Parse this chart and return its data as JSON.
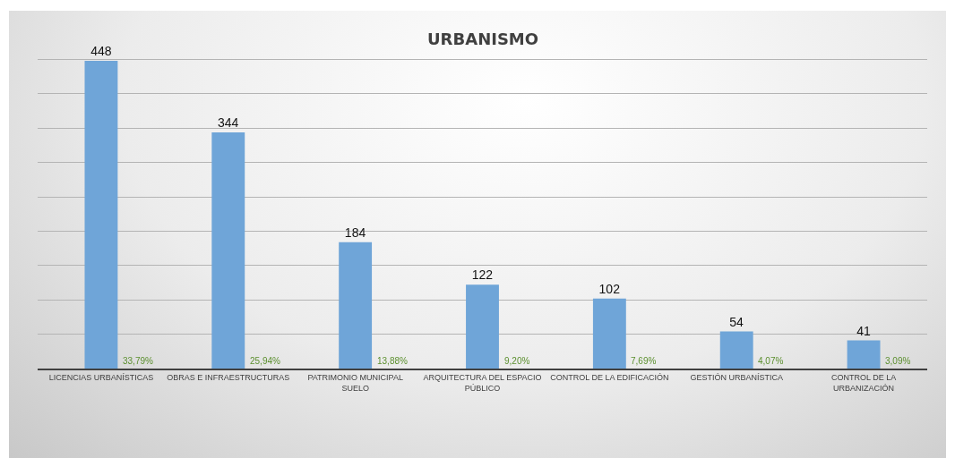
{
  "chart_data": {
    "type": "bar",
    "title": "URBANISMO",
    "categories": [
      "LICENCIAS URBANÍSTICAS",
      "OBRAS E INFRAESTRUCTURAS",
      "PATRIMONIO MUNICIPAL SUELO",
      "ARQUITECTURA DEL ESPACIO PÚBLICO",
      "CONTROL DE LA EDIFICACIÓN",
      "GESTIÓN URBANÍSTICA",
      "CONTROL DE LA URBANIZACIÓN"
    ],
    "values": [
      448,
      344,
      184,
      122,
      102,
      54,
      41
    ],
    "color": "#6fa5d8",
    "data_labels": true,
    "grid": "y",
    "tick_labels": "x",
    "annotations": [
      {
        "text": "33,79%",
        "x": "LICENCIAS URBANÍSTICAS",
        "y": 0
      },
      {
        "text": "25,94%",
        "x": "OBRAS E INFRAESTRUCTURAS",
        "y": 0
      },
      {
        "text": "13,88%",
        "x": "PATRIMONIO MUNICIPAL SUELO",
        "y": 0
      },
      {
        "text": "9,20%",
        "x": "ARQUITECTURA DEL ESPACIO PÚBLICO",
        "y": 0
      },
      {
        "text": "7,69%",
        "x": "CONTROL DE LA EDIFICACIÓN",
        "y": 0
      },
      {
        "text": "4,07%",
        "x": "GESTIÓN URBANÍSTICA",
        "y": 0
      },
      {
        "text": "3,09%",
        "x": "CONTROL DE LA URBANIZACIÓN",
        "y": 0
      }
    ]
  }
}
